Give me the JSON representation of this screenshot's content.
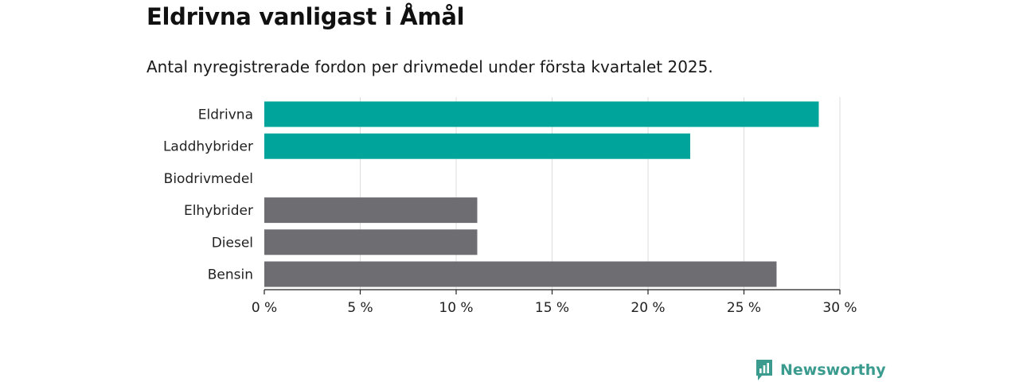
{
  "header": {
    "title": "Eldrivna vanligast i Åmål",
    "subtitle": "Antal nyregistrerade fordon per drivmedel under första kvartalet 2025."
  },
  "brand": {
    "name": "Newsworthy",
    "icon": "newsworthy-logo-icon"
  },
  "colors": {
    "highlight": "#00a49a",
    "other": "#6e6d72",
    "grid": "#dcdcdc",
    "axis": "#222222"
  },
  "chart_data": {
    "type": "bar",
    "orientation": "horizontal",
    "categories": [
      "Eldrivna",
      "Laddhybrider",
      "Biodrivmedel",
      "Elhybrider",
      "Diesel",
      "Bensin"
    ],
    "values": [
      28.9,
      22.2,
      0,
      11.1,
      11.1,
      26.7
    ],
    "highlighted": [
      true,
      true,
      false,
      false,
      false,
      false
    ],
    "xlim": [
      0,
      30
    ],
    "xticks": [
      0,
      5,
      10,
      15,
      20,
      25,
      30
    ],
    "xtick_labels": [
      "0 %",
      "5 %",
      "10 %",
      "15 %",
      "20 %",
      "25 %",
      "30 %"
    ],
    "grid": true,
    "xlabel": "",
    "ylabel": ""
  }
}
